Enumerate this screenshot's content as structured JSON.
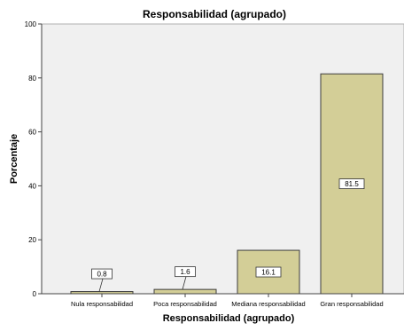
{
  "chart_data": {
    "type": "bar",
    "title": "Responsabilidad (agrupado)",
    "xlabel": "Responsabilidad (agrupado)",
    "ylabel": "Porcentaje",
    "categories": [
      "Nula responsabilidad",
      "Poca  responsabilidad",
      "Mediana responsabilidad",
      "Gran responsabilidad"
    ],
    "values": [
      0.8,
      1.6,
      16.1,
      81.5
    ],
    "data_labels": [
      "0.8",
      "1.6",
      "16.1",
      "81.5"
    ],
    "ylim": [
      0,
      100
    ],
    "yticks": [
      0,
      20,
      40,
      60,
      80,
      100
    ],
    "grid": false,
    "legend": "none",
    "colors": {
      "bar_fill": "#d3ce97",
      "bar_stroke": "#3c3c3c",
      "plot_bg": "#f0f0f0",
      "axis": "#444444",
      "text": "#000000"
    }
  }
}
